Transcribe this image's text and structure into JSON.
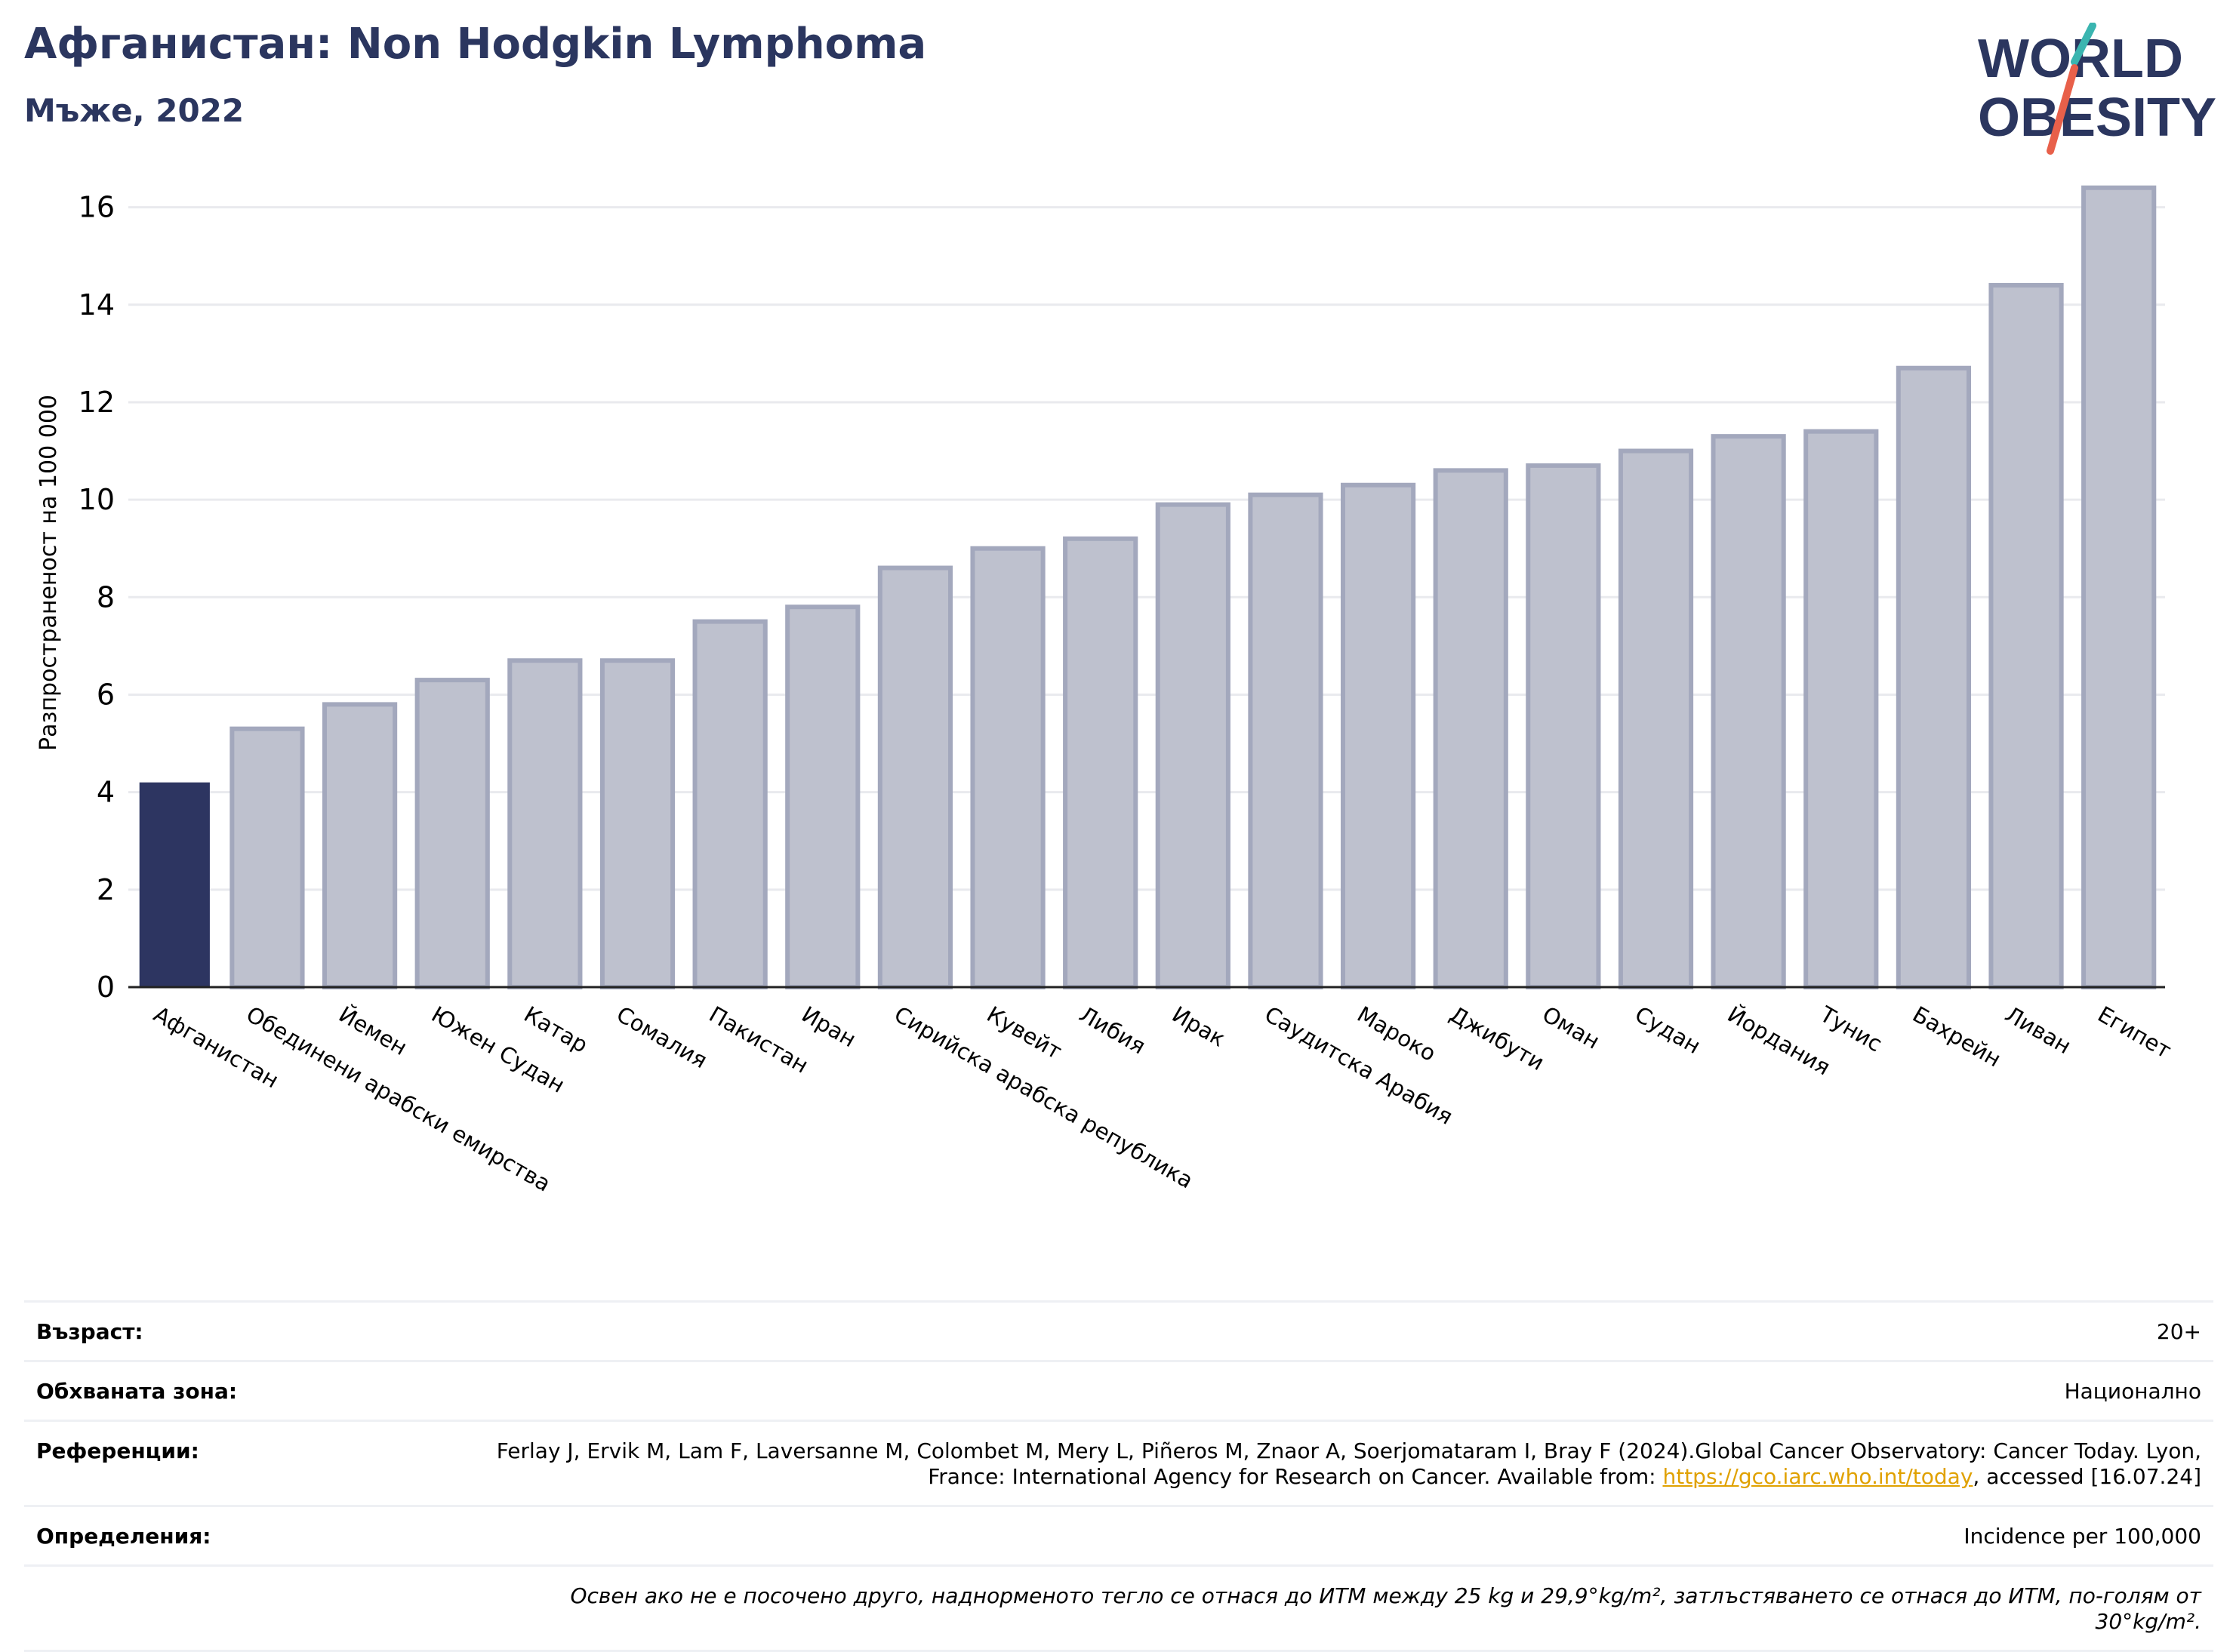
{
  "header": {
    "title": "Афганистан: Non Hodgkin Lymphoma",
    "subtitle": "Мъже, 2022"
  },
  "logo": {
    "line1": "WORLD",
    "line2": "OBESITY"
  },
  "colors": {
    "highlight": "#2d3561",
    "bars": "#bec1ce",
    "bar_border": "#a3a8bd",
    "title": "#2b365f"
  },
  "chart_data": {
    "type": "bar",
    "ylabel": "Разпространеност  на 100 000",
    "ylim": [
      0,
      17
    ],
    "yticks": [
      0,
      2,
      4,
      6,
      8,
      10,
      12,
      14,
      16
    ],
    "grid": true,
    "highlight": "Афганистан",
    "categories": [
      "Афганистан",
      "Обединени арабски емирства",
      "Йемен",
      "Южен Судан",
      "Катар",
      "Сомалия",
      "Пакистан",
      "Иран",
      "Сирийска арабска република",
      "Кувейт",
      "Либия",
      "Ирак",
      "Саудитска Арабия",
      "Мароко",
      "Джибути",
      "Оман",
      "Судан",
      "Йордания",
      "Тунис",
      "Бахрейн",
      "Ливан",
      "Египет"
    ],
    "values": [
      4.2,
      5.3,
      5.8,
      6.3,
      6.7,
      6.7,
      7.5,
      7.8,
      8.6,
      9.0,
      9.2,
      9.9,
      10.1,
      10.3,
      10.6,
      10.7,
      11.0,
      11.3,
      11.4,
      12.7,
      14.4,
      16.4
    ]
  },
  "info": {
    "age_label": "Възраст:",
    "age_value": "20+",
    "area_label": "Обхваната зона:",
    "area_value": "Национално",
    "ref_label": "Референции:",
    "ref_text_1": "Ferlay J, Ervik M, Lam F, Laversanne M, Colombet M, Mery L, Piñeros M, Znaor A, Soerjomataram I, Bray F (2024).Global Cancer Observatory: Cancer Today. Lyon, France: International Agency for Research on Cancer. Available from: ",
    "ref_link": "https://gco.iarc.who.int/today",
    "ref_text_2": ", accessed [16.07.24]",
    "def_label": "Определения:",
    "def_value": "Incidence per 100,000",
    "note": "Освен ако не е посочено друго, наднорменото тегло се отнася до ИТМ между 25 kg и 29,9°kg/m², затлъстяването се отнася до ИТМ, по-голям от 30°kg/m²."
  }
}
